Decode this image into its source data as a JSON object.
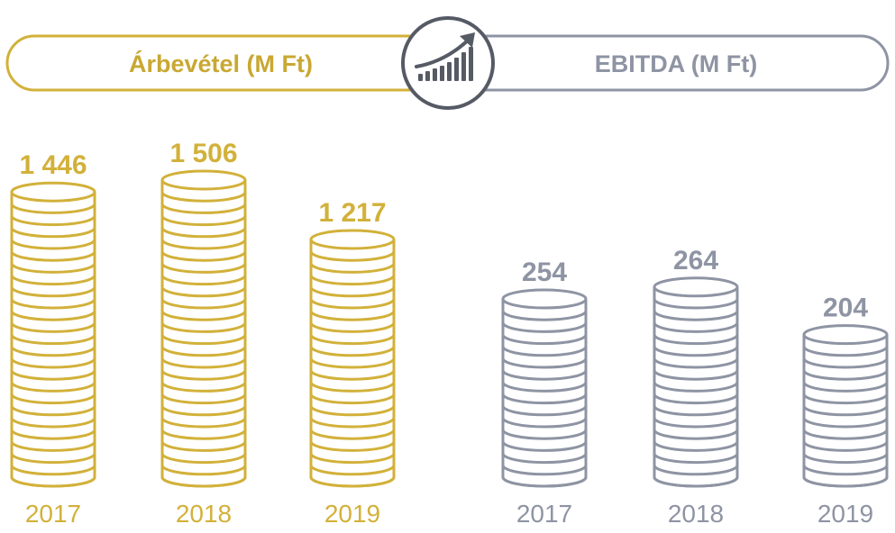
{
  "colors": {
    "revenue": "#d2b13a",
    "ebitda": "#8e94a3",
    "icon": "#555a64"
  },
  "header": {
    "left_title": "Árbevétel (M Ft)",
    "right_title": "EBITDA (M Ft)",
    "icon": "growth-chart-icon"
  },
  "chart_data": [
    {
      "type": "bar",
      "title": "Árbevétel (M Ft)",
      "categories": [
        "2017",
        "2018",
        "2019"
      ],
      "values": [
        1446,
        1506,
        1217
      ],
      "value_labels": [
        "1 446",
        "1 506",
        "1 217"
      ]
    },
    {
      "type": "bar",
      "title": "EBITDA (M Ft)",
      "categories": [
        "2017",
        "2018",
        "2019"
      ],
      "values": [
        254,
        264,
        204
      ],
      "value_labels": [
        "254",
        "264",
        "204"
      ]
    }
  ]
}
